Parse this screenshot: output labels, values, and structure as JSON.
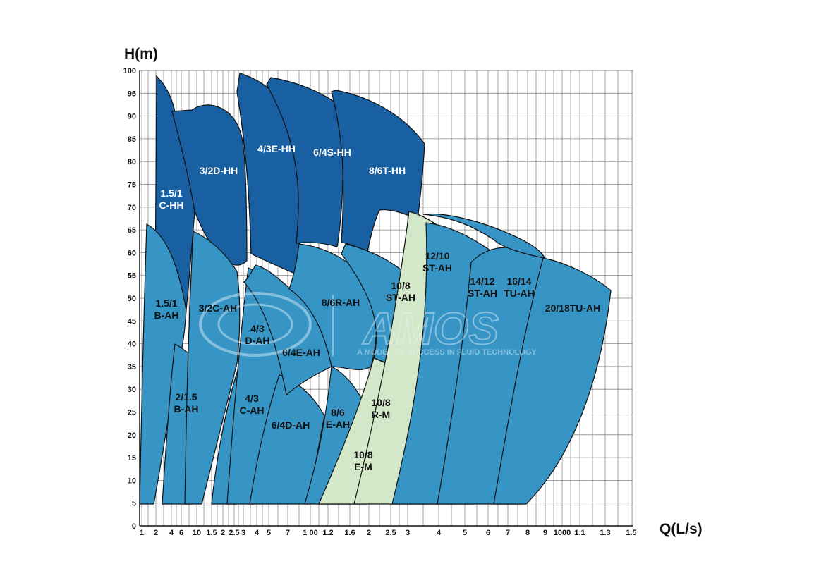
{
  "chart_data": {
    "type": "area",
    "xlabel": "Q(L/s)",
    "ylabel": "H(m)",
    "y_axis": {
      "range": [
        0,
        100
      ],
      "tick_labels": [
        "0",
        "5",
        "10",
        "15",
        "20",
        "25",
        "30",
        "35",
        "40",
        "45",
        "50",
        "55",
        "60",
        "65",
        "70",
        "75",
        "80",
        "85",
        "90",
        "95",
        "100"
      ]
    },
    "x_axis": {
      "scale": "log",
      "tick_labels": [
        "1",
        "2",
        "4",
        "6",
        "10",
        "1.5",
        "2",
        "2.5",
        "3",
        "4",
        "5",
        "7",
        "1 00",
        "1.2",
        "1.6",
        "2",
        "2.5",
        "3",
        "4",
        "5",
        "6",
        "7",
        "8",
        "9",
        "1000",
        "1.1",
        "1.3",
        "1.5"
      ]
    },
    "grid": true,
    "legend": "none",
    "colors": {
      "HH": "#1860a2",
      "AH": "#3795c6",
      "M": "#d3e8c8",
      "outline": "#111111",
      "grid": "#888888"
    },
    "series": [
      {
        "name": "1.5/1 C-HH",
        "group": "HH"
      },
      {
        "name": "3/2D-HH",
        "group": "HH"
      },
      {
        "name": "4/3E-HH",
        "group": "HH"
      },
      {
        "name": "6/4S-HH",
        "group": "HH"
      },
      {
        "name": "8/6T-HH",
        "group": "HH"
      },
      {
        "name": "1.5/1 B-AH",
        "group": "AH"
      },
      {
        "name": "2/1.5 B-AH",
        "group": "AH"
      },
      {
        "name": "3/2C-AH",
        "group": "AH"
      },
      {
        "name": "4/3 C-AH",
        "group": "AH"
      },
      {
        "name": "4/3 D-AH",
        "group": "AH"
      },
      {
        "name": "6/4D-AH",
        "group": "AH"
      },
      {
        "name": "6/4E-AH",
        "group": "AH"
      },
      {
        "name": "8/6 E-AH",
        "group": "AH"
      },
      {
        "name": "8/6R-AH",
        "group": "AH"
      },
      {
        "name": "10/8 ST-AH",
        "group": "AH"
      },
      {
        "name": "10/8 R-M",
        "group": "M"
      },
      {
        "name": "10/8 E-M",
        "group": "M"
      },
      {
        "name": "12/10 ST-AH",
        "group": "AH"
      },
      {
        "name": "14/12 ST-AH",
        "group": "AH"
      },
      {
        "name": "16/14 TU-AH",
        "group": "AH"
      },
      {
        "name": "20/18TU-AH",
        "group": "AH"
      }
    ],
    "region_labels": [
      {
        "lines": [
          "1.5/1",
          "C-HH"
        ],
        "color": "#ffffff"
      },
      {
        "lines": [
          "3/2D-HH"
        ],
        "color": "#ffffff"
      },
      {
        "lines": [
          "4/3E-HH"
        ],
        "color": "#ffffff"
      },
      {
        "lines": [
          "6/4S-HH"
        ],
        "color": "#ffffff"
      },
      {
        "lines": [
          "8/6T-HH"
        ],
        "color": "#ffffff"
      },
      {
        "lines": [
          "1.5/1",
          "B-AH"
        ],
        "color": "#111111"
      },
      {
        "lines": [
          "3/2C-AH"
        ],
        "color": "#111111"
      },
      {
        "lines": [
          "4/3",
          "D-AH"
        ],
        "color": "#111111"
      },
      {
        "lines": [
          "6/4E-AH"
        ],
        "color": "#111111"
      },
      {
        "lines": [
          "8/6R-AH"
        ],
        "color": "#111111"
      },
      {
        "lines": [
          "10/8",
          "ST-AH"
        ],
        "color": "#111111"
      },
      {
        "lines": [
          "12/10",
          "ST-AH"
        ],
        "color": "#111111"
      },
      {
        "lines": [
          "14/12",
          "ST-AH"
        ],
        "color": "#111111"
      },
      {
        "lines": [
          "16/14",
          "TU-AH"
        ],
        "color": "#111111"
      },
      {
        "lines": [
          "20/18TU-AH"
        ],
        "color": "#111111"
      },
      {
        "lines": [
          "2/1.5",
          "B-AH"
        ],
        "color": "#111111"
      },
      {
        "lines": [
          "4/3",
          "C-AH"
        ],
        "color": "#111111"
      },
      {
        "lines": [
          "6/4D-AH"
        ],
        "color": "#111111"
      },
      {
        "lines": [
          "8/6",
          "E-AH"
        ],
        "color": "#111111"
      },
      {
        "lines": [
          "10/8",
          "R-M"
        ],
        "color": "#111111"
      },
      {
        "lines": [
          "10/8",
          "E-M"
        ],
        "color": "#111111"
      }
    ]
  },
  "watermark": {
    "brand": "AMOS",
    "tagline": "A MODEL OF SUCCESS IN FLUID TECHNOLOGY"
  }
}
